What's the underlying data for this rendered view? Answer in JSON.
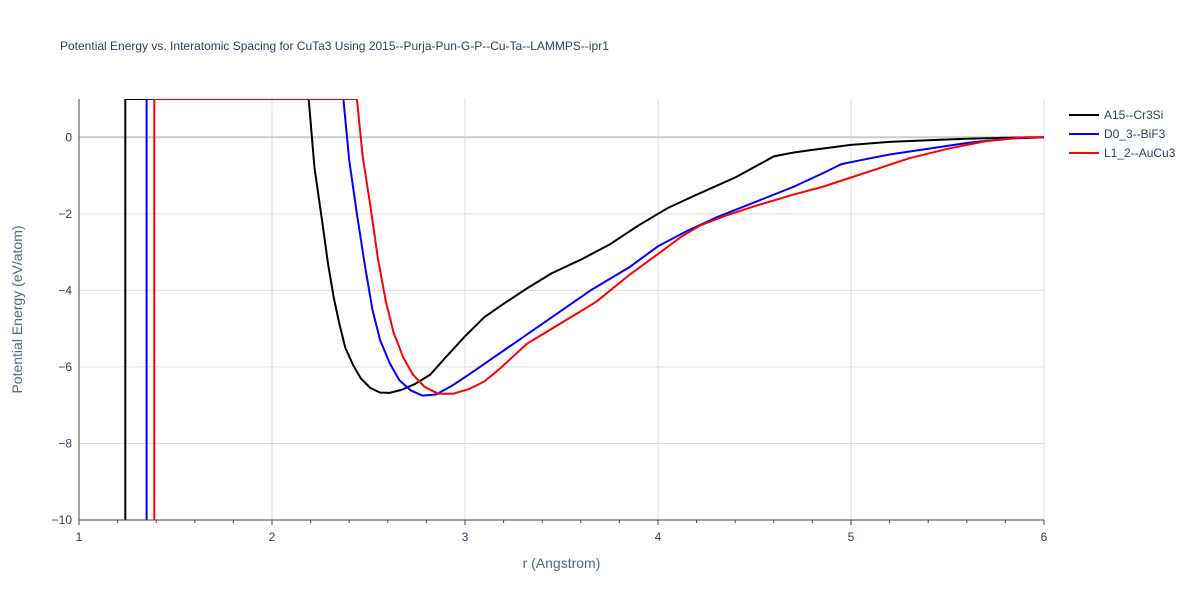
{
  "chart_data": {
    "type": "line",
    "title": "Potential Energy vs. Interatomic Spacing for CuTa3 Using 2015--Purja-Pun-G-P--Cu-Ta--LAMMPS--ipr1",
    "xlabel": "r (Angstrom)",
    "ylabel": "Potential Energy (eV/atom)",
    "xlim": [
      1,
      6
    ],
    "ylim": [
      -10,
      1
    ],
    "x_ticks": [
      1,
      2,
      3,
      4,
      5,
      6
    ],
    "y_ticks": [
      0,
      -2,
      -4,
      -6,
      -8,
      -10
    ],
    "x_tick_labels": [
      "1",
      "2",
      "3",
      "4",
      "5",
      "6"
    ],
    "y_tick_labels": [
      "0",
      "−2",
      "−4",
      "−6",
      "−8",
      "−10"
    ],
    "grid": true,
    "legend_position": "top-right",
    "series": [
      {
        "name": "A15--Cr3Si",
        "color": "#000000",
        "x": [
          1.24,
          1.24,
          2.19,
          2.22,
          2.26,
          2.29,
          2.32,
          2.35,
          2.38,
          2.42,
          2.46,
          2.51,
          2.56,
          2.61,
          2.67,
          2.74,
          2.82,
          2.9,
          3.0,
          3.1,
          3.2,
          3.32,
          3.45,
          3.6,
          3.75,
          3.9,
          4.05,
          4.2,
          4.4,
          4.6,
          4.7,
          4.8,
          5.0,
          5.2,
          5.4,
          5.6,
          5.8,
          6.0
        ],
        "y": [
          -10,
          1,
          1,
          -0.8,
          -2.2,
          -3.3,
          -4.2,
          -4.9,
          -5.5,
          -5.95,
          -6.3,
          -6.55,
          -6.67,
          -6.68,
          -6.6,
          -6.45,
          -6.2,
          -5.75,
          -5.2,
          -4.7,
          -4.35,
          -3.95,
          -3.55,
          -3.2,
          -2.8,
          -2.3,
          -1.85,
          -1.5,
          -1.05,
          -0.5,
          -0.4,
          -0.33,
          -0.2,
          -0.12,
          -0.08,
          -0.04,
          -0.01,
          0
        ]
      },
      {
        "name": "D0_3--BiF3",
        "color": "#0000ff",
        "x": [
          1.35,
          1.35,
          2.37,
          2.4,
          2.44,
          2.48,
          2.52,
          2.56,
          2.61,
          2.66,
          2.72,
          2.78,
          2.85,
          2.93,
          3.02,
          3.12,
          3.25,
          3.45,
          3.65,
          3.85,
          4.0,
          4.15,
          4.3,
          4.5,
          4.7,
          4.85,
          4.95,
          5.05,
          5.2,
          5.4,
          5.6,
          5.8,
          6.0
        ],
        "y": [
          -10,
          1,
          1,
          -0.6,
          -2.0,
          -3.3,
          -4.5,
          -5.3,
          -5.9,
          -6.35,
          -6.62,
          -6.75,
          -6.72,
          -6.5,
          -6.2,
          -5.85,
          -5.4,
          -4.7,
          -4.0,
          -3.4,
          -2.85,
          -2.45,
          -2.1,
          -1.7,
          -1.3,
          -0.95,
          -0.7,
          -0.6,
          -0.45,
          -0.3,
          -0.15,
          -0.04,
          0
        ]
      },
      {
        "name": "L1_2--AuCu3",
        "color": "#ff0000",
        "x": [
          1.39,
          1.39,
          2.44,
          2.47,
          2.51,
          2.55,
          2.59,
          2.63,
          2.68,
          2.73,
          2.79,
          2.86,
          2.94,
          3.02,
          3.1,
          3.18,
          3.32,
          3.5,
          3.68,
          3.85,
          4.0,
          4.12,
          4.22,
          4.35,
          4.5,
          4.7,
          4.85,
          5.0,
          5.15,
          5.3,
          5.5,
          5.7,
          5.9,
          6.0
        ],
        "y": [
          -10,
          1,
          1,
          -0.5,
          -1.8,
          -3.2,
          -4.3,
          -5.1,
          -5.75,
          -6.2,
          -6.52,
          -6.7,
          -6.7,
          -6.58,
          -6.38,
          -6.05,
          -5.4,
          -4.85,
          -4.3,
          -3.6,
          -3.05,
          -2.6,
          -2.3,
          -2.05,
          -1.8,
          -1.5,
          -1.3,
          -1.05,
          -0.8,
          -0.55,
          -0.3,
          -0.1,
          0,
          0
        ]
      }
    ]
  }
}
